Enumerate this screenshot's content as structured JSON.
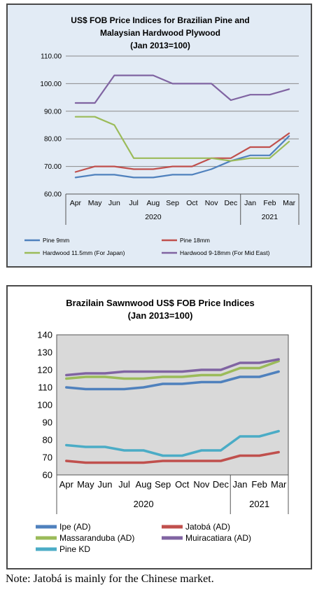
{
  "chart_data": [
    {
      "type": "line",
      "title": "US$ FOB Price Indices for Brazilian Pine and Malaysian Hardwood Plywood",
      "subtitle": "(Jan 2013=100)",
      "title_lines": [
        "US$ FOB Price Indices for Brazilian Pine and",
        "Malaysian Hardwood Plywood",
        "(Jan 2013=100)"
      ],
      "categories": [
        "Apr",
        "May",
        "Jun",
        "Jul",
        "Aug",
        "Sep",
        "Oct",
        "Nov",
        "Dec",
        "Jan",
        "Feb",
        "Mar"
      ],
      "year_groups": [
        {
          "label": "2020",
          "span": 9
        },
        {
          "label": "2021",
          "span": 3
        }
      ],
      "ylim": [
        60,
        110
      ],
      "yticks": [
        "60.00",
        "70.00",
        "80.00",
        "90.00",
        "100.00",
        "110.00"
      ],
      "grid": true,
      "legend_position": "bottom",
      "series": [
        {
          "name": "Pine 9mm",
          "color": "#4f81bd",
          "values": [
            66,
            67,
            67,
            66,
            66,
            67,
            67,
            69,
            72,
            74,
            74,
            81
          ]
        },
        {
          "name": "Pine 18mm",
          "color": "#c0504d",
          "values": [
            68,
            70,
            70,
            69,
            69,
            70,
            70,
            73,
            73,
            77,
            77,
            82
          ]
        },
        {
          "name": "Hardwood 11.5mm (For Japan)",
          "color": "#9bbb59",
          "values": [
            88,
            88,
            85,
            73,
            73,
            73,
            73,
            73,
            72,
            73,
            73,
            79
          ]
        },
        {
          "name": "Hardwood 9-18mm (For Mid East)",
          "color": "#8064a2",
          "values": [
            93,
            93,
            103,
            103,
            103,
            100,
            100,
            100,
            94,
            96,
            96,
            98
          ]
        }
      ]
    },
    {
      "type": "line",
      "title": "Brazilain Sawnwood US$ FOB Price Indices",
      "subtitle": "(Jan 2013=100)",
      "title_lines": [
        "Brazilain Sawnwood US$ FOB Price Indices",
        "(Jan 2013=100)"
      ],
      "categories": [
        "Apr",
        "May",
        "Jun",
        "Jul",
        "Aug",
        "Sep",
        "Oct",
        "Nov",
        "Dec",
        "Jan",
        "Feb",
        "Mar"
      ],
      "year_groups": [
        {
          "label": "2020",
          "span": 9
        },
        {
          "label": "2021",
          "span": 3
        }
      ],
      "ylim": [
        60,
        140
      ],
      "yticks": [
        "60",
        "70",
        "80",
        "90",
        "100",
        "110",
        "120",
        "130",
        "140"
      ],
      "grid": false,
      "legend_position": "bottom",
      "series": [
        {
          "name": "Ipe (AD)",
          "color": "#4f81bd",
          "values": [
            110,
            109,
            109,
            109,
            110,
            112,
            112,
            113,
            113,
            116,
            116,
            119
          ]
        },
        {
          "name": "Jatobá (AD)",
          "color": "#c0504d",
          "values": [
            68,
            67,
            67,
            67,
            67,
            68,
            68,
            68,
            68,
            71,
            71,
            73
          ]
        },
        {
          "name": "Massaranduba (AD)",
          "color": "#9bbb59",
          "values": [
            115,
            116,
            116,
            115,
            115,
            116,
            116,
            117,
            117,
            121,
            121,
            125
          ]
        },
        {
          "name": "Muiracatiara (AD)",
          "color": "#8064a2",
          "values": [
            117,
            118,
            118,
            119,
            119,
            119,
            119,
            120,
            120,
            124,
            124,
            126
          ]
        },
        {
          "name": "Pine KD",
          "color": "#4bacc6",
          "values": [
            77,
            76,
            76,
            74,
            74,
            71,
            71,
            74,
            74,
            82,
            82,
            85
          ]
        }
      ]
    }
  ],
  "note": "Note: Jatobá is mainly for the Chinese market."
}
